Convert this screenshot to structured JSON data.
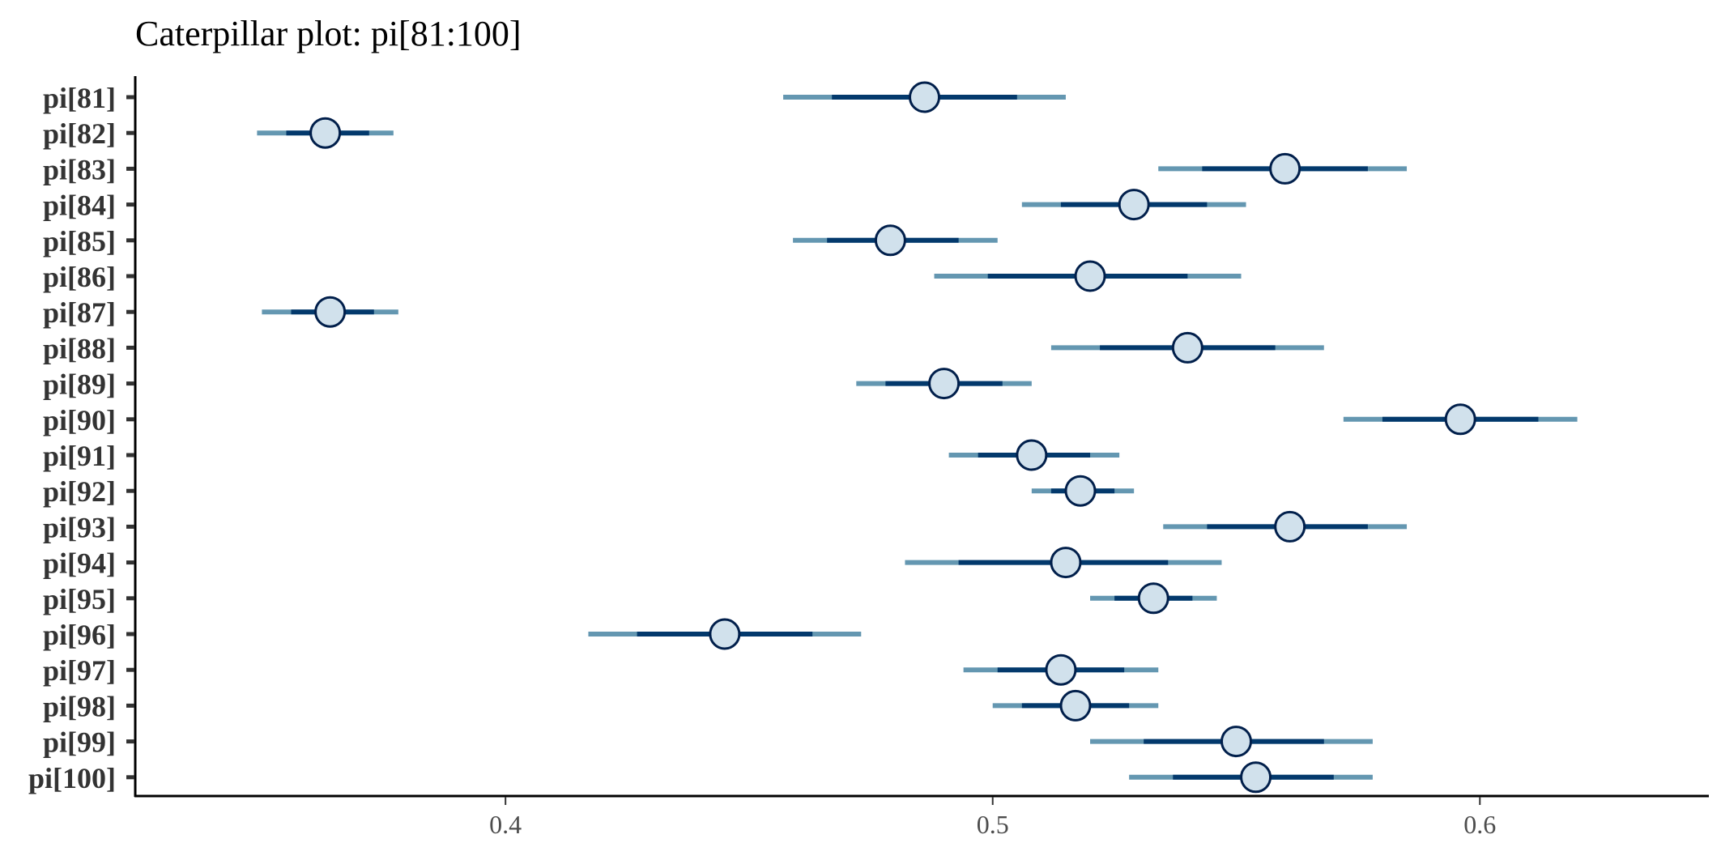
{
  "chart_data": {
    "type": "caterpillar",
    "title": "Caterpillar plot: pi[81:100]",
    "xlabel": "",
    "ylabel": "",
    "xlim": [
      0.324,
      0.647
    ],
    "x_ticks": [
      0.4,
      0.5,
      0.6
    ],
    "x_tick_labels": [
      "0.4",
      "0.5",
      "0.6"
    ],
    "grid": false,
    "legend": "none",
    "colors": {
      "outer_interval": "#6497b1",
      "inner_interval": "#03396c",
      "point_fill": "#d1e1ec",
      "point_stroke": "#011f4b",
      "axis": "#000000",
      "tick": "#333333"
    },
    "items": [
      {
        "label": "pi[81]",
        "median": 0.486,
        "inner": [
          0.467,
          0.505
        ],
        "outer": [
          0.457,
          0.515
        ]
      },
      {
        "label": "pi[82]",
        "median": 0.363,
        "inner": [
          0.355,
          0.372
        ],
        "outer": [
          0.349,
          0.377
        ]
      },
      {
        "label": "pi[83]",
        "median": 0.56,
        "inner": [
          0.543,
          0.577
        ],
        "outer": [
          0.534,
          0.585
        ]
      },
      {
        "label": "pi[84]",
        "median": 0.529,
        "inner": [
          0.514,
          0.544
        ],
        "outer": [
          0.506,
          0.552
        ]
      },
      {
        "label": "pi[85]",
        "median": 0.479,
        "inner": [
          0.466,
          0.493
        ],
        "outer": [
          0.459,
          0.501
        ]
      },
      {
        "label": "pi[86]",
        "median": 0.52,
        "inner": [
          0.499,
          0.54
        ],
        "outer": [
          0.488,
          0.551
        ]
      },
      {
        "label": "pi[87]",
        "median": 0.364,
        "inner": [
          0.356,
          0.373
        ],
        "outer": [
          0.35,
          0.378
        ]
      },
      {
        "label": "pi[88]",
        "median": 0.54,
        "inner": [
          0.522,
          0.558
        ],
        "outer": [
          0.512,
          0.568
        ]
      },
      {
        "label": "pi[89]",
        "median": 0.49,
        "inner": [
          0.478,
          0.502
        ],
        "outer": [
          0.472,
          0.508
        ]
      },
      {
        "label": "pi[90]",
        "median": 0.596,
        "inner": [
          0.58,
          0.612
        ],
        "outer": [
          0.572,
          0.62
        ]
      },
      {
        "label": "pi[91]",
        "median": 0.508,
        "inner": [
          0.497,
          0.52
        ],
        "outer": [
          0.491,
          0.526
        ]
      },
      {
        "label": "pi[92]",
        "median": 0.518,
        "inner": [
          0.512,
          0.525
        ],
        "outer": [
          0.508,
          0.529
        ]
      },
      {
        "label": "pi[93]",
        "median": 0.561,
        "inner": [
          0.544,
          0.577
        ],
        "outer": [
          0.535,
          0.585
        ]
      },
      {
        "label": "pi[94]",
        "median": 0.515,
        "inner": [
          0.493,
          0.536
        ],
        "outer": [
          0.482,
          0.547
        ]
      },
      {
        "label": "pi[95]",
        "median": 0.533,
        "inner": [
          0.525,
          0.541
        ],
        "outer": [
          0.52,
          0.546
        ]
      },
      {
        "label": "pi[96]",
        "median": 0.445,
        "inner": [
          0.427,
          0.463
        ],
        "outer": [
          0.417,
          0.473
        ]
      },
      {
        "label": "pi[97]",
        "median": 0.514,
        "inner": [
          0.501,
          0.527
        ],
        "outer": [
          0.494,
          0.534
        ]
      },
      {
        "label": "pi[98]",
        "median": 0.517,
        "inner": [
          0.506,
          0.528
        ],
        "outer": [
          0.5,
          0.534
        ]
      },
      {
        "label": "pi[99]",
        "median": 0.55,
        "inner": [
          0.531,
          0.568
        ],
        "outer": [
          0.52,
          0.578
        ]
      },
      {
        "label": "pi[100]",
        "median": 0.554,
        "inner": [
          0.537,
          0.57
        ],
        "outer": [
          0.528,
          0.578
        ]
      }
    ]
  }
}
